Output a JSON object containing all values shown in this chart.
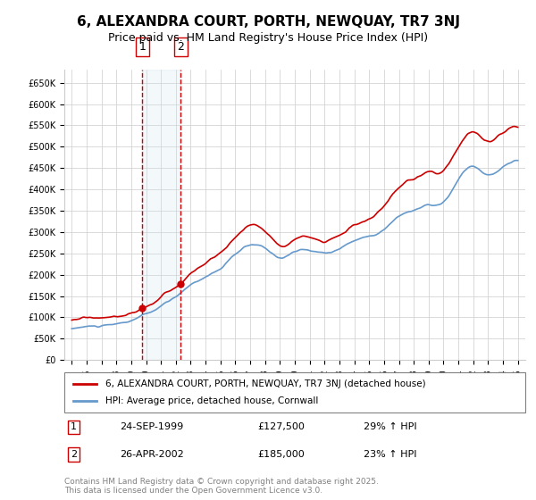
{
  "title": "6, ALEXANDRA COURT, PORTH, NEWQUAY, TR7 3NJ",
  "subtitle": "Price paid vs. HM Land Registry's House Price Index (HPI)",
  "legend_entry1": "6, ALEXANDRA COURT, PORTH, NEWQUAY, TR7 3NJ (detached house)",
  "legend_entry2": "HPI: Average price, detached house, Cornwall",
  "transaction1_label": "1",
  "transaction1_date": "24-SEP-1999",
  "transaction1_price": "£127,500",
  "transaction1_hpi": "29% ↑ HPI",
  "transaction2_label": "2",
  "transaction2_date": "26-APR-2002",
  "transaction2_price": "£185,000",
  "transaction2_hpi": "23% ↑ HPI",
  "footer": "Contains HM Land Registry data © Crown copyright and database right 2025.\nThis data is licensed under the Open Government Licence v3.0.",
  "hpi_color": "#6699cc",
  "price_color": "#cc0000",
  "marker_color": "#cc0000",
  "vline_color": "#cc0000",
  "shaded_color": "#d0e4f0",
  "background_color": "#ffffff",
  "grid_color": "#cccccc",
  "ylim": [
    0,
    680000
  ],
  "ytick_step": 50000,
  "xlabel_fontsize": 8,
  "ylabel_fontsize": 8,
  "title_fontsize": 11,
  "subtitle_fontsize": 9
}
